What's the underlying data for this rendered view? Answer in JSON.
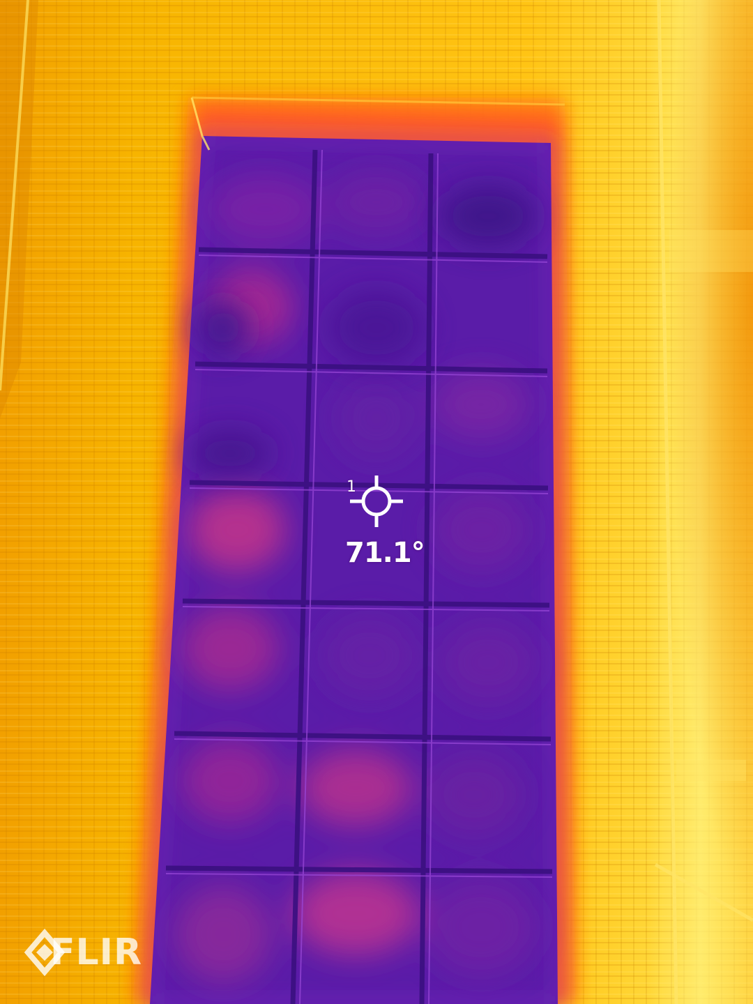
{
  "measurement": {
    "spot_index": "1",
    "spot_temperature": "71.1°"
  },
  "brand": {
    "logo_text": "FLIR"
  },
  "colors": {
    "hot": "#f5a800",
    "warm": "#ffd21a",
    "hottest": "#fff06a",
    "cold": "#4a1a9a",
    "cool": "#6a20b8",
    "mid": "#c2308a",
    "edge": "#ff6a10"
  },
  "icons": {
    "spotmeter": "crosshair-icon",
    "logo": "flir-diamond-icon"
  }
}
